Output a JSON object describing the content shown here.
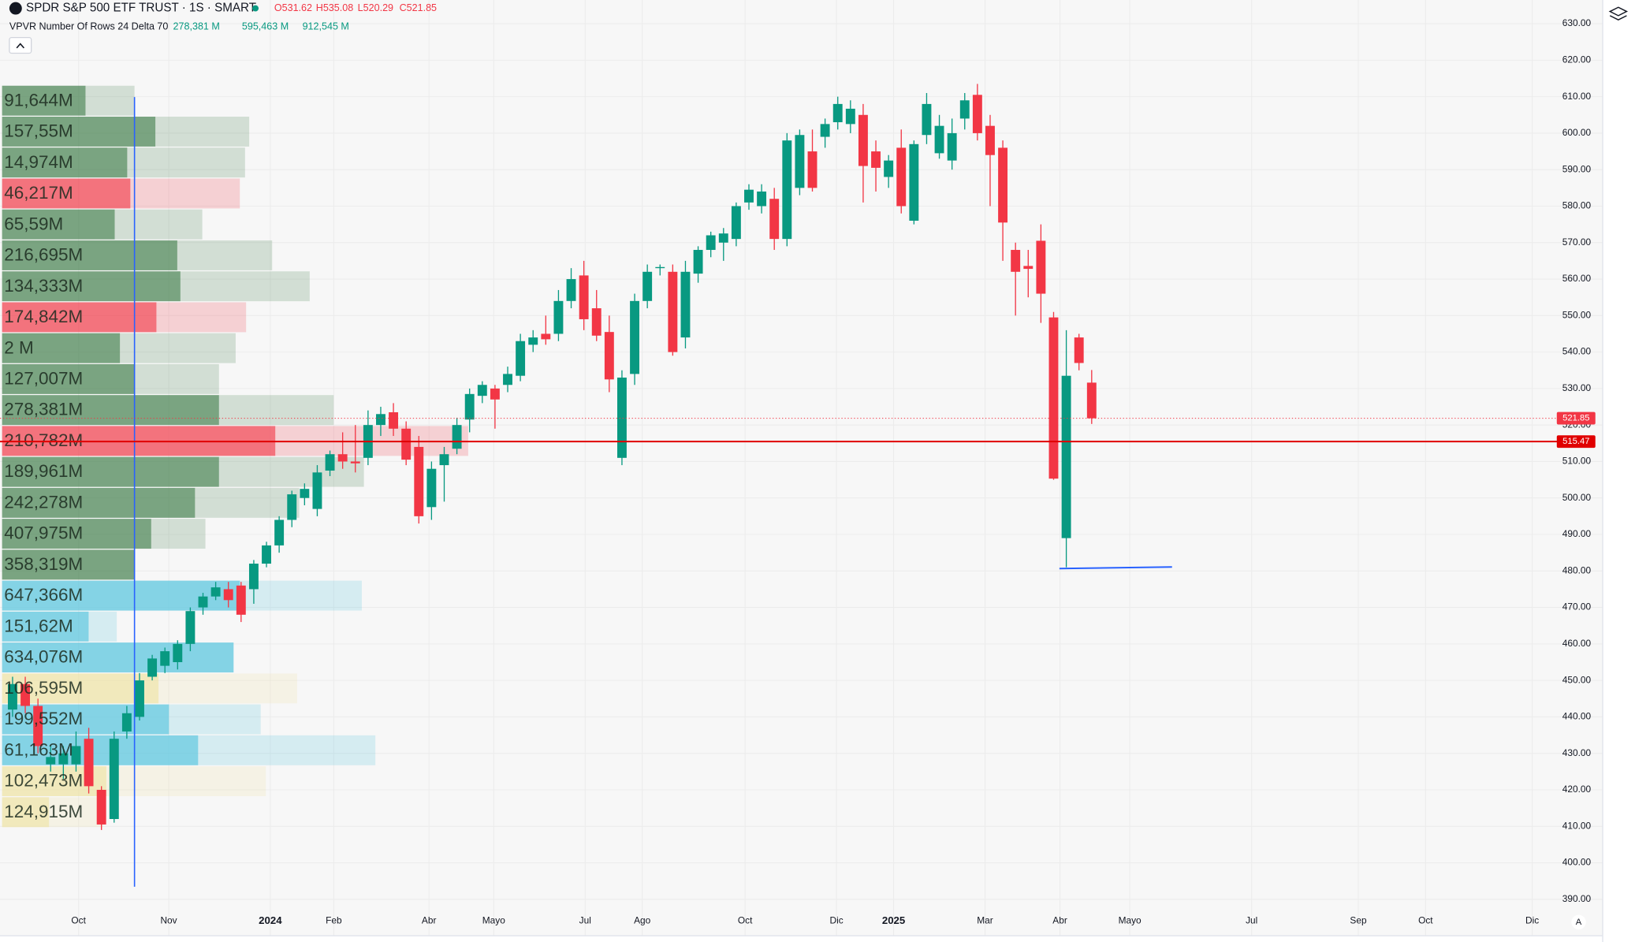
{
  "header": {
    "symbol": "SPDR S&P 500 ETF TRUST · 1S · SMART",
    "ohlc": [
      "O531.62",
      "H535.08",
      "L520.29",
      "C521.85"
    ],
    "indicator": "VPVR Number Of Rows 24 Delta 70",
    "indicator_values": [
      "278,381 M",
      "595,463 M",
      "912,545 M"
    ]
  },
  "chart_data": {
    "type": "candlestick",
    "open": [
      442,
      449,
      443,
      427,
      427,
      427,
      434,
      420,
      412,
      436,
      440,
      451,
      454,
      455,
      460,
      470,
      473,
      475,
      476,
      475,
      482,
      487,
      494,
      500,
      497,
      507.5,
      512,
      510,
      511,
      520,
      523.5,
      519,
      514,
      497.5,
      509,
      513.5,
      521.5,
      528,
      530,
      531,
      533.5,
      542,
      545,
      545,
      554,
      561,
      552,
      545.5,
      511,
      534,
      554,
      563,
      562,
      544,
      561.5,
      568,
      570,
      571,
      581,
      580,
      582,
      571,
      585,
      595,
      599,
      603,
      602.5,
      605,
      595,
      588,
      596,
      576,
      599.5,
      594.5,
      592.5,
      604,
      610.5,
      602,
      596,
      568,
      563.6,
      570.5,
      549.5,
      489,
      544,
      531.62
    ],
    "high": [
      451,
      451,
      445,
      432,
      432,
      436,
      437,
      421,
      436,
      443,
      452,
      457,
      459,
      461,
      470,
      474,
      477,
      477,
      477,
      483,
      488,
      495,
      502,
      504,
      509,
      513,
      518,
      520,
      524,
      525,
      526,
      521,
      517,
      510,
      514,
      522,
      530,
      532,
      531,
      536,
      545,
      546,
      550,
      557,
      563,
      565,
      557,
      550,
      535,
      556,
      564,
      564,
      564,
      565,
      569,
      573,
      574,
      581,
      586,
      586,
      585,
      600,
      601,
      601,
      604,
      610,
      609,
      608,
      598,
      594,
      601,
      598,
      611,
      605,
      604,
      611,
      613.5,
      605,
      598,
      570,
      568,
      575,
      551,
      546,
      545,
      535.08
    ],
    "low": [
      440,
      441,
      430,
      425,
      423,
      425,
      419,
      409,
      411,
      434,
      439,
      450,
      452,
      453,
      458,
      468,
      472,
      470,
      466,
      471,
      481,
      485,
      492,
      498,
      495,
      506,
      508,
      507,
      509,
      517,
      517,
      509,
      493,
      494,
      499,
      512,
      518,
      526,
      519,
      529,
      532,
      540,
      542,
      543,
      552,
      546,
      543,
      529,
      509,
      531,
      552,
      561,
      539,
      541,
      559,
      566,
      565,
      569,
      579,
      578,
      568,
      569,
      583,
      584,
      596,
      601,
      600,
      581,
      584,
      585,
      578,
      575,
      597,
      593,
      590,
      601,
      598,
      580,
      565,
      550,
      555,
      548,
      505,
      481,
      535,
      520.29
    ],
    "close": [
      449,
      443,
      432,
      429,
      430,
      432,
      421,
      410.5,
      434,
      441,
      450,
      456,
      458,
      460,
      469,
      473,
      475.5,
      472,
      468,
      482,
      487,
      494,
      501,
      502.5,
      507,
      512,
      510,
      509.5,
      520,
      523,
      519,
      510.5,
      495,
      508,
      512,
      520,
      528.5,
      531,
      527,
      534,
      543,
      544,
      543.5,
      554,
      560,
      549,
      544.5,
      532.5,
      533,
      554,
      562,
      563.3,
      540,
      562,
      568,
      572,
      572.5,
      580,
      584.5,
      584,
      571,
      598,
      599.5,
      585,
      602.5,
      608,
      606.7,
      591,
      590.5,
      592.5,
      580,
      597,
      608,
      602,
      600,
      609,
      600,
      594,
      575.5,
      562,
      562.8,
      556,
      505.3,
      533.5,
      537,
      521.85
    ],
    "up_color": "#089981",
    "down_color": "#f23645",
    "xlim": [
      -0.99,
      121.8
    ],
    "xticks": [
      {
        "value": 5.2,
        "label": "Oct"
      },
      {
        "value": 12.3,
        "label": "Nov"
      },
      {
        "value": 20.3,
        "label": "2024"
      },
      {
        "value": 25.3,
        "label": "Feb"
      },
      {
        "value": 32.8,
        "label": "Abr"
      },
      {
        "value": 37.9,
        "label": "Mayo"
      },
      {
        "value": 45.1,
        "label": "Jul"
      },
      {
        "value": 49.6,
        "label": "Ago"
      },
      {
        "value": 57.7,
        "label": "Oct"
      },
      {
        "value": 64.9,
        "label": "Dic"
      },
      {
        "value": 69.4,
        "label": "2025"
      },
      {
        "value": 76.6,
        "label": "Mar"
      },
      {
        "value": 82.5,
        "label": "Abr"
      },
      {
        "value": 88.0,
        "label": "Mayo"
      },
      {
        "value": 97.6,
        "label": "Jul"
      },
      {
        "value": 106.0,
        "label": "Sep"
      },
      {
        "value": 111.3,
        "label": "Oct"
      },
      {
        "value": 119.7,
        "label": "Dic"
      }
    ],
    "ylim": [
      388.3,
      636.5
    ],
    "yticks": [
      {
        "value": 390,
        "label": "390.00"
      },
      {
        "value": 400,
        "label": "400.00"
      },
      {
        "value": 410,
        "label": "410.00"
      },
      {
        "value": 420,
        "label": "420.00"
      },
      {
        "value": 430,
        "label": "430.00"
      },
      {
        "value": 440,
        "label": "440.00"
      },
      {
        "value": 450,
        "label": "450.00"
      },
      {
        "value": 460,
        "label": "460.00"
      },
      {
        "value": 470,
        "label": "470.00"
      },
      {
        "value": 480,
        "label": "480.00"
      },
      {
        "value": 490,
        "label": "490.00"
      },
      {
        "value": 500,
        "label": "500.00"
      },
      {
        "value": 510,
        "label": "510.00"
      },
      {
        "value": 520,
        "label": "520.00"
      },
      {
        "value": 530,
        "label": "530.00"
      },
      {
        "value": 540,
        "label": "540.00"
      },
      {
        "value": 550,
        "label": "550.00"
      },
      {
        "value": 560,
        "label": "560.00"
      },
      {
        "value": 570,
        "label": "570.00"
      },
      {
        "value": 580,
        "label": "580.00"
      },
      {
        "value": 590,
        "label": "590.00"
      },
      {
        "value": 600,
        "label": "600.00"
      },
      {
        "value": 610,
        "label": "610.00"
      },
      {
        "value": 620,
        "label": "620.00"
      },
      {
        "value": 630,
        "label": "630.00"
      }
    ],
    "grid": true,
    "price_lines": [
      {
        "value": 521.85,
        "color": "#f23645",
        "dashed": true
      },
      {
        "value": 515.47,
        "color": "#e00000",
        "dashed": false
      }
    ],
    "volume_profile": {
      "row_low": 409.5,
      "row_high": 613,
      "labels": [
        "91,644M",
        "157,55M",
        "14,974M",
        "46,217M",
        "65,59M",
        "216,695M",
        "134,333M",
        "174,842M",
        "2 M",
        "127,007M",
        "278,381M",
        "210,782M",
        "189,961M",
        "242,278M",
        "407,975M",
        "358,319M",
        "647,366M",
        "151,62M",
        "634,076M",
        "106,595M",
        "199,552M",
        "61,163M",
        "102,473M",
        "124,915M"
      ],
      "inner": [
        80,
        147,
        120,
        123,
        108,
        168,
        171,
        148,
        113,
        127,
        208,
        262,
        208,
        185,
        143,
        127,
        228,
        83,
        222,
        150,
        160,
        188,
        100,
        45
      ],
      "total": [
        127,
        237,
        233,
        228,
        192,
        259,
        295,
        234,
        224,
        208,
        318,
        447,
        347,
        285,
        195,
        127,
        345,
        110,
        222,
        283,
        248,
        358,
        253,
        97
      ],
      "colors": [
        "#3f7d4a",
        "#3f7d4a",
        "#3f7d4a",
        "#f23645",
        "#3f7d4a",
        "#3f7d4a",
        "#3f7d4a",
        "#f23645",
        "#3f7d4a",
        "#3f7d4a",
        "#3f7d4a",
        "#f23645",
        "#3f7d4a",
        "#3f7d4a",
        "#3f7d4a",
        "#3f7d4a",
        "#4fc3dd",
        "#4fc3dd",
        "#4fc3dd",
        "#efe2a0",
        "#4fc3dd",
        "#4fc3dd",
        "#efe2a0",
        "#efe2a0"
      ]
    }
  },
  "ui": {
    "autoscale": "A"
  }
}
